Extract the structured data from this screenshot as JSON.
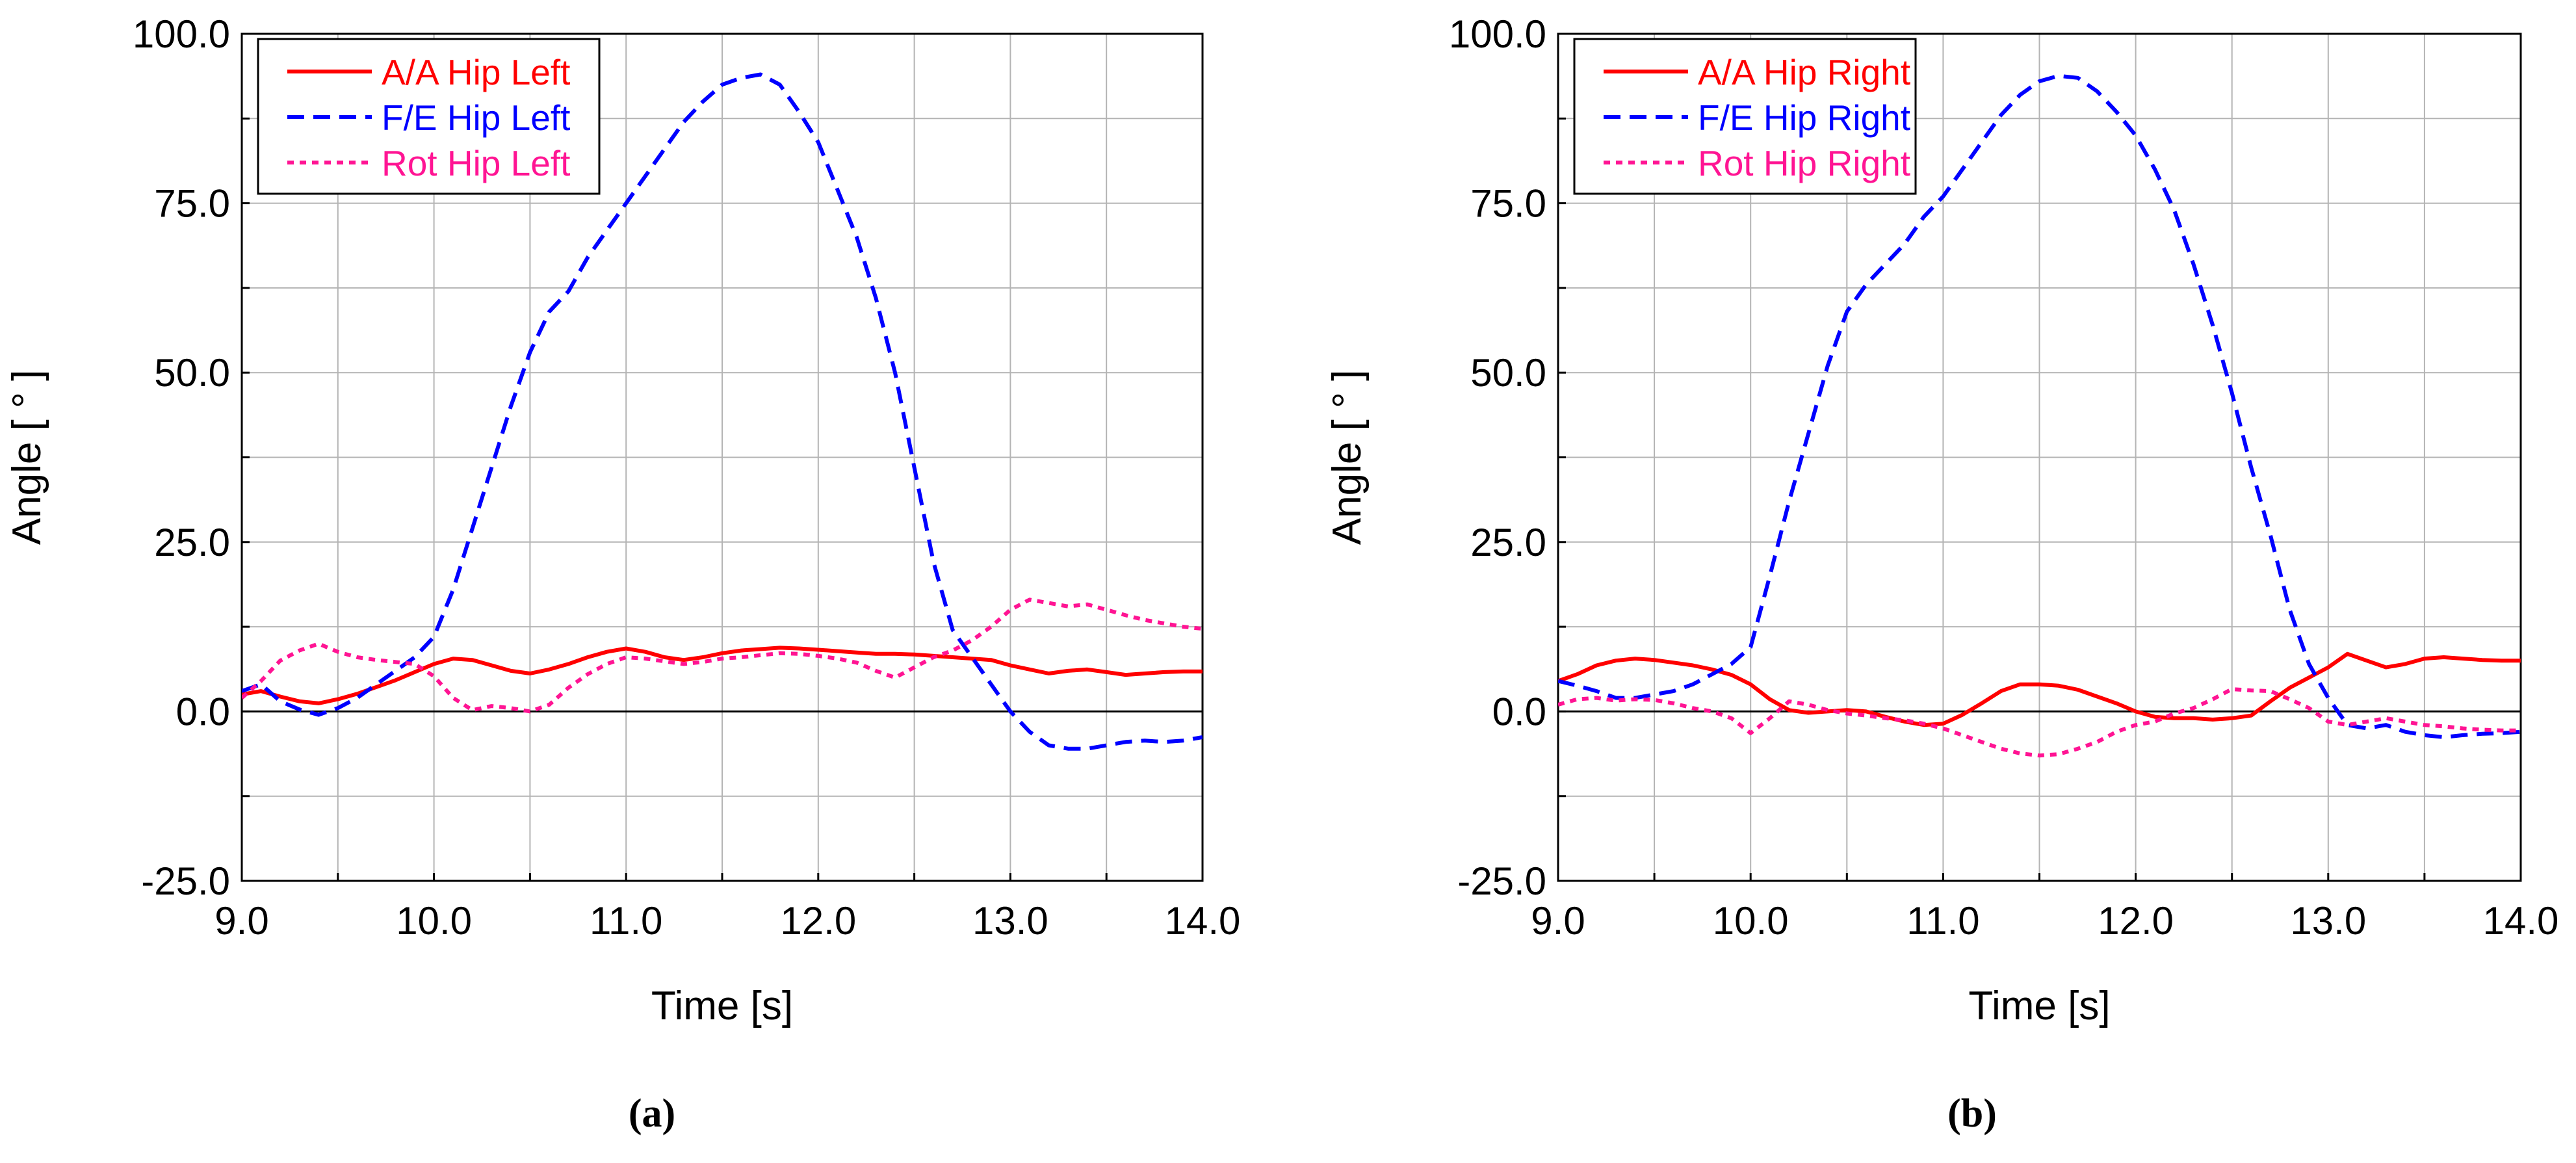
{
  "figure": {
    "captions": [
      "(a)",
      "(b)"
    ]
  },
  "colors": {
    "aa": "#ff0000",
    "fe": "#0000ff",
    "rot": "#ff1493",
    "grid": "#b4b4b4",
    "axis": "#000000"
  },
  "chart_data": [
    {
      "type": "line",
      "title": "",
      "xlabel": "Time [s]",
      "ylabel": "Angle [ ° ]",
      "xlim": [
        9.0,
        14.0
      ],
      "ylim": [
        -25.0,
        100.0
      ],
      "xticks": [
        9.0,
        10.0,
        11.0,
        12.0,
        13.0,
        14.0
      ],
      "yticks": [
        -25.0,
        0.0,
        25.0,
        50.0,
        75.0,
        100.0
      ],
      "xtick_labels": [
        "9.0",
        "10.0",
        "11.0",
        "12.0",
        "13.0",
        "14.0"
      ],
      "ytick_labels": [
        "-25.0",
        "0.0",
        "25.0",
        "50.0",
        "75.0",
        "100.0"
      ],
      "grid": true,
      "legend_position": "top-left",
      "series": [
        {
          "name": "A/A Hip Left",
          "style": "solid",
          "color": "#ff0000",
          "x": [
            9.0,
            9.1,
            9.2,
            9.3,
            9.4,
            9.5,
            9.6,
            9.7,
            9.8,
            9.9,
            10.0,
            10.1,
            10.2,
            10.3,
            10.4,
            10.5,
            10.6,
            10.7,
            10.8,
            10.9,
            11.0,
            11.1,
            11.2,
            11.3,
            11.4,
            11.5,
            11.6,
            11.7,
            11.8,
            11.9,
            12.0,
            12.1,
            12.2,
            12.3,
            12.4,
            12.5,
            12.6,
            12.7,
            12.8,
            12.9,
            13.0,
            13.1,
            13.2,
            13.3,
            13.4,
            13.5,
            13.6,
            13.7,
            13.8,
            13.9,
            14.0
          ],
          "y": [
            2.5,
            3.0,
            2.2,
            1.5,
            1.2,
            1.8,
            2.6,
            3.6,
            4.6,
            5.8,
            7.0,
            7.8,
            7.6,
            6.8,
            6.0,
            5.6,
            6.2,
            7.0,
            8.0,
            8.8,
            9.3,
            8.8,
            8.0,
            7.6,
            8.0,
            8.6,
            9.0,
            9.2,
            9.4,
            9.3,
            9.1,
            8.9,
            8.7,
            8.5,
            8.5,
            8.4,
            8.2,
            8.0,
            7.8,
            7.6,
            6.8,
            6.2,
            5.6,
            6.0,
            6.2,
            5.8,
            5.4,
            5.6,
            5.8,
            5.9,
            5.9
          ]
        },
        {
          "name": "F/E Hip Left",
          "style": "dashed",
          "color": "#0000ff",
          "x": [
            9.0,
            9.1,
            9.2,
            9.3,
            9.4,
            9.5,
            9.6,
            9.7,
            9.8,
            9.9,
            10.0,
            10.1,
            10.2,
            10.3,
            10.4,
            10.5,
            10.6,
            10.7,
            10.8,
            10.9,
            11.0,
            11.1,
            11.2,
            11.3,
            11.4,
            11.5,
            11.6,
            11.7,
            11.8,
            11.9,
            12.0,
            12.1,
            12.2,
            12.3,
            12.4,
            12.5,
            12.6,
            12.7,
            12.8,
            12.9,
            13.0,
            13.1,
            13.2,
            13.3,
            13.4,
            13.5,
            13.6,
            13.7,
            13.8,
            13.9,
            14.0
          ],
          "y": [
            3.0,
            4.0,
            1.5,
            0.3,
            -0.5,
            0.5,
            2.0,
            4.0,
            6.0,
            8.0,
            11.0,
            18.0,
            27.0,
            36.0,
            45.0,
            53.0,
            59.0,
            62.0,
            67.0,
            71.0,
            75.0,
            79.0,
            83.0,
            87.0,
            90.0,
            92.5,
            93.5,
            94.0,
            92.5,
            88.5,
            84.0,
            77.0,
            70.0,
            61.0,
            50.0,
            36.0,
            22.0,
            12.0,
            8.0,
            4.0,
            0.0,
            -3.0,
            -5.0,
            -5.5,
            -5.5,
            -5.0,
            -4.5,
            -4.3,
            -4.5,
            -4.3,
            -3.8
          ]
        },
        {
          "name": "Rot Hip Left",
          "style": "dotted",
          "color": "#ff1493",
          "x": [
            9.0,
            9.1,
            9.2,
            9.3,
            9.4,
            9.5,
            9.6,
            9.7,
            9.8,
            9.9,
            10.0,
            10.1,
            10.2,
            10.3,
            10.4,
            10.5,
            10.6,
            10.7,
            10.8,
            10.9,
            11.0,
            11.1,
            11.2,
            11.3,
            11.4,
            11.5,
            11.6,
            11.7,
            11.8,
            11.9,
            12.0,
            12.1,
            12.2,
            12.3,
            12.4,
            12.5,
            12.6,
            12.7,
            12.8,
            12.9,
            13.0,
            13.1,
            13.2,
            13.3,
            13.4,
            13.5,
            13.6,
            13.7,
            13.8,
            13.9,
            14.0
          ],
          "y": [
            2.0,
            4.5,
            7.5,
            9.0,
            10.0,
            8.8,
            8.0,
            7.6,
            7.3,
            7.0,
            5.2,
            2.0,
            0.2,
            0.8,
            0.5,
            0.0,
            1.0,
            3.5,
            5.5,
            7.0,
            8.0,
            7.8,
            7.4,
            7.0,
            7.3,
            7.8,
            8.0,
            8.3,
            8.6,
            8.5,
            8.2,
            7.8,
            7.2,
            6.0,
            5.0,
            6.5,
            8.0,
            9.0,
            10.5,
            12.5,
            15.0,
            16.5,
            16.0,
            15.5,
            15.8,
            15.0,
            14.2,
            13.5,
            13.0,
            12.5,
            12.2
          ]
        }
      ]
    },
    {
      "type": "line",
      "title": "",
      "xlabel": "Time [s]",
      "ylabel": "Angle [ ° ]",
      "xlim": [
        9.0,
        14.0
      ],
      "ylim": [
        -25.0,
        100.0
      ],
      "xticks": [
        9.0,
        10.0,
        11.0,
        12.0,
        13.0,
        14.0
      ],
      "yticks": [
        -25.0,
        0.0,
        25.0,
        50.0,
        75.0,
        100.0
      ],
      "xtick_labels": [
        "9.0",
        "10.0",
        "11.0",
        "12.0",
        "13.0",
        "14.0"
      ],
      "ytick_labels": [
        "-25.0",
        "0.0",
        "25.0",
        "50.0",
        "75.0",
        "100.0"
      ],
      "grid": true,
      "legend_position": "top-left",
      "series": [
        {
          "name": "A/A Hip Right",
          "style": "solid",
          "color": "#ff0000",
          "x": [
            9.0,
            9.1,
            9.2,
            9.3,
            9.4,
            9.5,
            9.6,
            9.7,
            9.8,
            9.9,
            10.0,
            10.1,
            10.2,
            10.3,
            10.4,
            10.5,
            10.6,
            10.7,
            10.8,
            10.9,
            11.0,
            11.1,
            11.2,
            11.3,
            11.4,
            11.5,
            11.6,
            11.7,
            11.8,
            11.9,
            12.0,
            12.1,
            12.2,
            12.3,
            12.4,
            12.5,
            12.6,
            12.7,
            12.8,
            12.9,
            13.0,
            13.1,
            13.2,
            13.3,
            13.4,
            13.5,
            13.6,
            13.7,
            13.8,
            13.9,
            14.0
          ],
          "y": [
            4.5,
            5.5,
            6.8,
            7.5,
            7.8,
            7.6,
            7.2,
            6.8,
            6.2,
            5.4,
            4.0,
            1.8,
            0.2,
            -0.2,
            0.0,
            0.2,
            0.0,
            -0.8,
            -1.5,
            -2.0,
            -1.8,
            -0.5,
            1.2,
            3.0,
            4.0,
            4.0,
            3.8,
            3.2,
            2.2,
            1.2,
            0.0,
            -0.8,
            -1.0,
            -1.0,
            -1.2,
            -1.0,
            -0.6,
            1.5,
            3.5,
            5.0,
            6.5,
            8.5,
            7.5,
            6.5,
            7.0,
            7.8,
            8.0,
            7.8,
            7.6,
            7.5,
            7.5
          ]
        },
        {
          "name": "F/E Hip Right",
          "style": "dashed",
          "color": "#0000ff",
          "x": [
            9.0,
            9.1,
            9.2,
            9.3,
            9.4,
            9.5,
            9.6,
            9.7,
            9.8,
            9.9,
            10.0,
            10.1,
            10.2,
            10.3,
            10.4,
            10.5,
            10.6,
            10.7,
            10.8,
            10.9,
            11.0,
            11.1,
            11.2,
            11.3,
            11.4,
            11.5,
            11.6,
            11.7,
            11.8,
            11.9,
            12.0,
            12.1,
            12.2,
            12.3,
            12.4,
            12.5,
            12.6,
            12.7,
            12.8,
            12.9,
            13.0,
            13.1,
            13.2,
            13.3,
            13.4,
            13.5,
            13.6,
            13.7,
            13.8,
            13.9,
            14.0
          ],
          "y": [
            4.5,
            3.8,
            3.0,
            2.0,
            2.0,
            2.5,
            3.0,
            4.0,
            5.5,
            7.0,
            9.5,
            20.0,
            31.0,
            41.0,
            51.0,
            59.0,
            63.0,
            66.0,
            69.0,
            73.0,
            76.0,
            80.0,
            84.0,
            88.0,
            91.0,
            93.0,
            93.8,
            93.5,
            91.5,
            88.5,
            85.0,
            80.0,
            74.0,
            66.0,
            57.0,
            47.0,
            36.0,
            26.0,
            15.0,
            7.0,
            2.0,
            -2.0,
            -2.5,
            -2.0,
            -3.0,
            -3.5,
            -3.8,
            -3.5,
            -3.3,
            -3.2,
            -3.0
          ]
        },
        {
          "name": "Rot Hip Right",
          "style": "dotted",
          "color": "#ff1493",
          "x": [
            9.0,
            9.1,
            9.2,
            9.3,
            9.4,
            9.5,
            9.6,
            9.7,
            9.8,
            9.9,
            10.0,
            10.1,
            10.2,
            10.3,
            10.4,
            10.5,
            10.6,
            10.7,
            10.8,
            10.9,
            11.0,
            11.1,
            11.2,
            11.3,
            11.4,
            11.5,
            11.6,
            11.7,
            11.8,
            11.9,
            12.0,
            12.1,
            12.2,
            12.3,
            12.4,
            12.5,
            12.6,
            12.7,
            12.8,
            12.9,
            13.0,
            13.1,
            13.2,
            13.3,
            13.4,
            13.5,
            13.6,
            13.7,
            13.8,
            13.9,
            14.0
          ],
          "y": [
            1.0,
            1.8,
            2.0,
            1.6,
            1.8,
            1.7,
            1.2,
            0.5,
            0.0,
            -1.0,
            -3.2,
            -1.0,
            1.5,
            1.0,
            0.2,
            -0.3,
            -0.6,
            -1.0,
            -1.3,
            -1.8,
            -2.5,
            -3.5,
            -4.5,
            -5.5,
            -6.2,
            -6.5,
            -6.3,
            -5.5,
            -4.5,
            -3.0,
            -2.0,
            -1.5,
            -0.3,
            0.5,
            1.8,
            3.3,
            3.1,
            3.0,
            1.8,
            0.5,
            -1.5,
            -2.0,
            -1.5,
            -1.0,
            -1.5,
            -2.0,
            -2.2,
            -2.5,
            -2.7,
            -2.8,
            -2.8
          ]
        }
      ]
    }
  ]
}
